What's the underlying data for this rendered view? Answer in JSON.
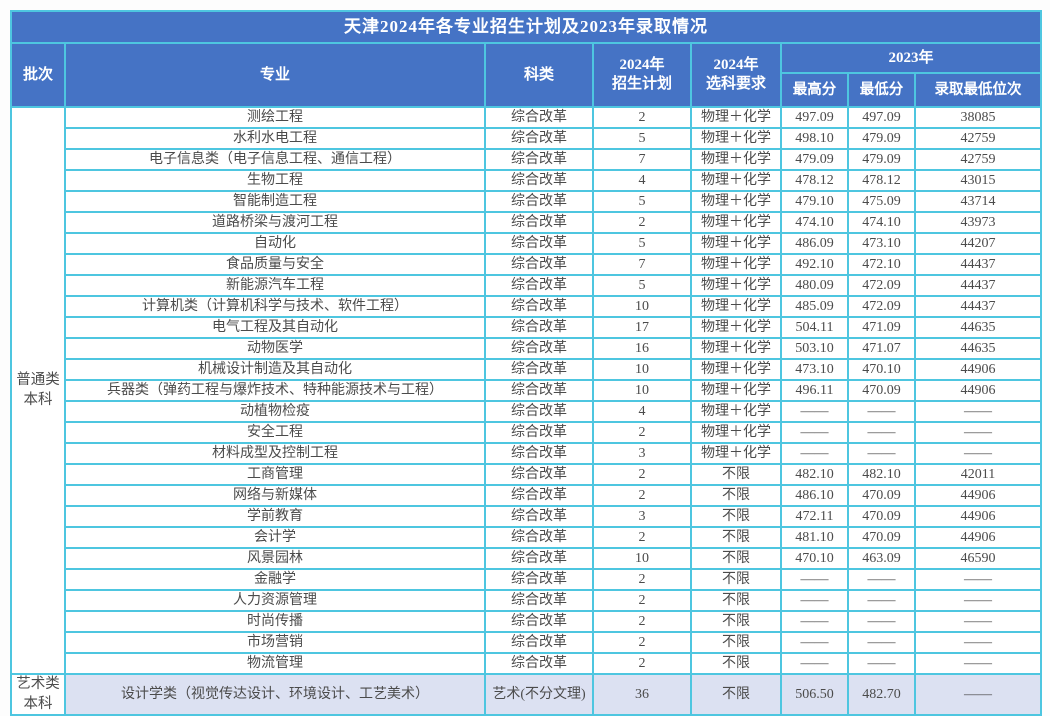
{
  "title": "天津2024年各专业招生计划及2023年录取情况",
  "header": {
    "batch": "批次",
    "major": "专业",
    "category": "科类",
    "plan_2024": [
      "2024年",
      "招生计划"
    ],
    "subject_2024": [
      "2024年",
      "选科要求"
    ],
    "group_2023": "2023年",
    "max_score": "最高分",
    "min_score": "最低分",
    "min_rank": "录取最低位次"
  },
  "batches": [
    {
      "label_lines": [
        "普通类",
        "本科"
      ],
      "highlight": false,
      "rows": [
        [
          "测绘工程",
          "综合改革",
          "2",
          "物理＋化学",
          "497.09",
          "497.09",
          "38085"
        ],
        [
          "水利水电工程",
          "综合改革",
          "5",
          "物理＋化学",
          "498.10",
          "479.09",
          "42759"
        ],
        [
          "电子信息类（电子信息工程、通信工程）",
          "综合改革",
          "7",
          "物理＋化学",
          "479.09",
          "479.09",
          "42759"
        ],
        [
          "生物工程",
          "综合改革",
          "4",
          "物理＋化学",
          "478.12",
          "478.12",
          "43015"
        ],
        [
          "智能制造工程",
          "综合改革",
          "5",
          "物理＋化学",
          "479.10",
          "475.09",
          "43714"
        ],
        [
          "道路桥梁与渡河工程",
          "综合改革",
          "2",
          "物理＋化学",
          "474.10",
          "474.10",
          "43973"
        ],
        [
          "自动化",
          "综合改革",
          "5",
          "物理＋化学",
          "486.09",
          "473.10",
          "44207"
        ],
        [
          "食品质量与安全",
          "综合改革",
          "7",
          "物理＋化学",
          "492.10",
          "472.10",
          "44437"
        ],
        [
          "新能源汽车工程",
          "综合改革",
          "5",
          "物理＋化学",
          "480.09",
          "472.09",
          "44437"
        ],
        [
          "计算机类（计算机科学与技术、软件工程）",
          "综合改革",
          "10",
          "物理＋化学",
          "485.09",
          "472.09",
          "44437"
        ],
        [
          "电气工程及其自动化",
          "综合改革",
          "17",
          "物理＋化学",
          "504.11",
          "471.09",
          "44635"
        ],
        [
          "动物医学",
          "综合改革",
          "16",
          "物理＋化学",
          "503.10",
          "471.07",
          "44635"
        ],
        [
          "机械设计制造及其自动化",
          "综合改革",
          "10",
          "物理＋化学",
          "473.10",
          "470.10",
          "44906"
        ],
        [
          "兵器类（弹药工程与爆炸技术、特种能源技术与工程）",
          "综合改革",
          "10",
          "物理＋化学",
          "496.11",
          "470.09",
          "44906"
        ],
        [
          "动植物检疫",
          "综合改革",
          "4",
          "物理＋化学",
          "——",
          "——",
          "——"
        ],
        [
          "安全工程",
          "综合改革",
          "2",
          "物理＋化学",
          "——",
          "——",
          "——"
        ],
        [
          "材料成型及控制工程",
          "综合改革",
          "3",
          "物理＋化学",
          "——",
          "——",
          "——"
        ],
        [
          "工商管理",
          "综合改革",
          "2",
          "不限",
          "482.10",
          "482.10",
          "42011"
        ],
        [
          "网络与新媒体",
          "综合改革",
          "2",
          "不限",
          "486.10",
          "470.09",
          "44906"
        ],
        [
          "学前教育",
          "综合改革",
          "3",
          "不限",
          "472.11",
          "470.09",
          "44906"
        ],
        [
          "会计学",
          "综合改革",
          "2",
          "不限",
          "481.10",
          "470.09",
          "44906"
        ],
        [
          "风景园林",
          "综合改革",
          "10",
          "不限",
          "470.10",
          "463.09",
          "46590"
        ],
        [
          "金融学",
          "综合改革",
          "2",
          "不限",
          "——",
          "——",
          "——"
        ],
        [
          "人力资源管理",
          "综合改革",
          "2",
          "不限",
          "——",
          "——",
          "——"
        ],
        [
          "时尚传播",
          "综合改革",
          "2",
          "不限",
          "——",
          "——",
          "——"
        ],
        [
          "市场营销",
          "综合改革",
          "2",
          "不限",
          "——",
          "——",
          "——"
        ],
        [
          "物流管理",
          "综合改革",
          "2",
          "不限",
          "——",
          "——",
          "——"
        ]
      ]
    },
    {
      "label_lines": [
        "艺术类",
        "本科"
      ],
      "highlight": true,
      "rows": [
        [
          "设计学类（视觉传达设计、环境设计、工艺美术）",
          "艺术(不分文理)",
          "36",
          "不限",
          "506.50",
          "482.70",
          "——"
        ]
      ]
    }
  ],
  "colors": {
    "header_bg": "#4573C5",
    "header_text": "#FFFFFF",
    "border": "#4EC6E0",
    "body_text": "#4B4B4B",
    "highlight_row_bg": "#DCE1F2"
  }
}
